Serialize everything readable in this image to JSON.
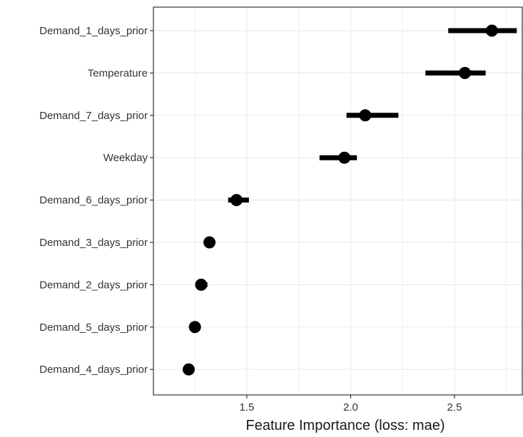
{
  "chart_data": {
    "type": "scatter",
    "subtype": "dot-and-interval",
    "xlabel": "Feature Importance (loss: mae)",
    "ylabel": "",
    "title": "",
    "xlim": [
      1.05,
      2.83
    ],
    "xticks": [
      1.5,
      2.0,
      2.5
    ],
    "xtick_labels": [
      "1.5",
      "2.0",
      "2.5"
    ],
    "grid": true,
    "points": [
      {
        "feature": "Demand_1_days_prior",
        "importance": 2.68,
        "low": 2.47,
        "high": 2.8
      },
      {
        "feature": "Temperature",
        "importance": 2.55,
        "low": 2.36,
        "high": 2.65
      },
      {
        "feature": "Demand_7_days_prior",
        "importance": 2.07,
        "low": 1.98,
        "high": 2.23
      },
      {
        "feature": "Weekday",
        "importance": 1.97,
        "low": 1.85,
        "high": 2.03
      },
      {
        "feature": "Demand_6_days_prior",
        "importance": 1.45,
        "low": 1.41,
        "high": 1.51
      },
      {
        "feature": "Demand_3_days_prior",
        "importance": 1.32,
        "low": 1.3,
        "high": 1.33
      },
      {
        "feature": "Demand_2_days_prior",
        "importance": 1.28,
        "low": 1.26,
        "high": 1.31
      },
      {
        "feature": "Demand_5_days_prior",
        "importance": 1.25,
        "low": 1.24,
        "high": 1.26
      },
      {
        "feature": "Demand_4_days_prior",
        "importance": 1.22,
        "low": 1.21,
        "high": 1.23
      }
    ]
  }
}
